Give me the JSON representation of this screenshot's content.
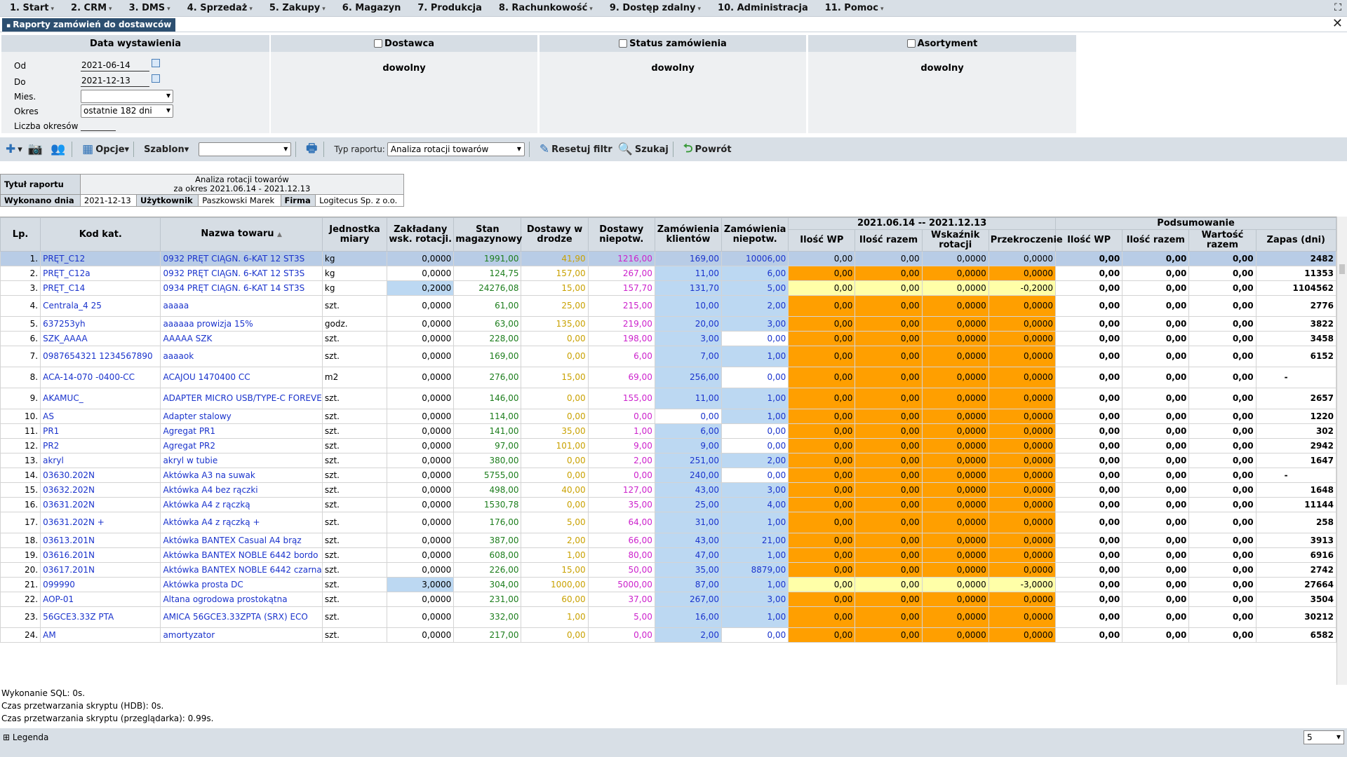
{
  "menu": [
    "1. Start",
    "2. CRM",
    "3. DMS",
    "4. Sprzedaż",
    "5. Zakupy",
    "6. Magazyn",
    "7. Produkcja",
    "8. Rachunkowość",
    "9. Dostęp zdalny",
    "10. Administracja",
    "11. Pomoc"
  ],
  "tab_title": "Raporty zamówień do dostawców",
  "filters": {
    "date_header": "Data wystawienia",
    "od_label": "Od",
    "od_value": "2021-06-14",
    "do_label": "Do",
    "do_value": "2021-12-13",
    "mies_label": "Mies.",
    "mies_value": "",
    "okres_label": "Okres",
    "okres_value": "ostatnie 182 dni",
    "liczba_label": "Liczba okresów",
    "dostawca_header": "Dostawca",
    "status_header": "Status zamówienia",
    "asort_header": "Asortyment",
    "any": "dowolny"
  },
  "toolbar": {
    "opcje": "Opcje",
    "szablon": "Szablon",
    "szablon_value": "",
    "typ_label": "Typ raportu:",
    "typ_value": "Analiza rotacji towarów",
    "reset": "Resetuj filtr",
    "search": "Szukaj",
    "back": "Powrót"
  },
  "info": {
    "title_label": "Tytuł raportu",
    "title_line1": "Analiza rotacji towarów",
    "title_line2": "za okres 2021.06.14 - 2021.12.13",
    "done_label": "Wykonano dnia",
    "done_value": "2021-12-13",
    "user_label": "Użytkownik",
    "user_value": "Paszkowski Marek",
    "firm_label": "Firma",
    "firm_value": "Logitecus Sp. z o.o."
  },
  "columns": {
    "lp": "Lp.",
    "kod": "Kod kat.",
    "nazwa": "Nazwa towaru",
    "jm": "Jednostka miary",
    "zakl": "Zakładany wsk. rotacji.",
    "stan": "Stan magazynowy",
    "drodze": "Dostawy w drodze",
    "niep": "Dostawy niepotw.",
    "zkl": "Zamówienia klientów",
    "zniep": "Zamówienia niepotw.",
    "period": "2021.06.14 -- 2021.12.13",
    "iwp": "Ilość WP",
    "iraz": "Ilość razem",
    "wsk": "Wskaźnik rotacji",
    "przek": "Przekroczenie",
    "summary": "Podsumowanie",
    "s_iwp": "Ilość WP",
    "s_iraz": "Ilość razem",
    "s_wart": "Wartość razem",
    "zapas": "Zapas (dni)"
  },
  "rows": [
    {
      "lp": "1.",
      "kod": "PRĘT_C12",
      "nazwa": "0932 PRĘT CIĄGN. 6-KAT 12 ST3S",
      "jm": "kg",
      "zakl": "0,0000",
      "stan": "1991,00",
      "drodze": "41,90",
      "niep": "1216,00",
      "zkl": "169,00",
      "zniep": "10006,00",
      "iwp": "0,00",
      "iraz": "0,00",
      "wsk": "0,0000",
      "przek": "0,0000",
      "siwp": "0,00",
      "siraz": "0,00",
      "swart": "0,00",
      "zapas": "2482"
    },
    {
      "lp": "2.",
      "kod": "PRĘT_C12a",
      "nazwa": "0932 PRĘT CIĄGN. 6-KAT 12 ST3S",
      "jm": "kg",
      "zakl": "0,0000",
      "stan": "124,75",
      "drodze": "157,00",
      "niep": "267,00",
      "zkl": "11,00",
      "zniep": "6,00",
      "iwp": "0,00",
      "iraz": "0,00",
      "wsk": "0,0000",
      "przek": "0,0000",
      "siwp": "0,00",
      "siraz": "0,00",
      "swart": "0,00",
      "zapas": "11353"
    },
    {
      "lp": "3.",
      "kod": "PRĘT_C14",
      "nazwa": "0934 PRĘT CIĄGN. 6-KAT 14 ST3S",
      "jm": "kg",
      "zakl": "0,2000",
      "stan": "24276,08",
      "drodze": "15,00",
      "niep": "157,70",
      "zkl": "131,70",
      "zniep": "5,00",
      "iwp": "0,00",
      "iraz": "0,00",
      "wsk": "0,0000",
      "przek": "-0,2000",
      "siwp": "0,00",
      "siraz": "0,00",
      "swart": "0,00",
      "zapas": "1104562"
    },
    {
      "lp": "4.",
      "kod": "Centrala_4 25",
      "nazwa": "aaaaa",
      "jm": "szt.",
      "zakl": "0,0000",
      "stan": "61,00",
      "drodze": "25,00",
      "niep": "215,00",
      "zkl": "10,00",
      "zniep": "2,00",
      "iwp": "0,00",
      "iraz": "0,00",
      "wsk": "0,0000",
      "przek": "0,0000",
      "siwp": "0,00",
      "siraz": "0,00",
      "swart": "0,00",
      "zapas": "2776"
    },
    {
      "lp": "5.",
      "kod": "637253yh",
      "nazwa": "aaaaaa prowizja 15%",
      "jm": "godz.",
      "zakl": "0,0000",
      "stan": "63,00",
      "drodze": "135,00",
      "niep": "219,00",
      "zkl": "20,00",
      "zniep": "3,00",
      "iwp": "0,00",
      "iraz": "0,00",
      "wsk": "0,0000",
      "przek": "0,0000",
      "siwp": "0,00",
      "siraz": "0,00",
      "swart": "0,00",
      "zapas": "3822"
    },
    {
      "lp": "6.",
      "kod": "SZK_AAAA",
      "nazwa": "AAAAA SZK",
      "jm": "szt.",
      "zakl": "0,0000",
      "stan": "228,00",
      "drodze": "0,00",
      "niep": "198,00",
      "zkl": "3,00",
      "zniep": "0,00",
      "iwp": "0,00",
      "iraz": "0,00",
      "wsk": "0,0000",
      "przek": "0,0000",
      "siwp": "0,00",
      "siraz": "0,00",
      "swart": "0,00",
      "zapas": "3458"
    },
    {
      "lp": "7.",
      "kod": "0987654321 1234567890",
      "nazwa": "aaaaok",
      "jm": "szt.",
      "zakl": "0,0000",
      "stan": "169,00",
      "drodze": "0,00",
      "niep": "6,00",
      "zkl": "7,00",
      "zniep": "1,00",
      "iwp": "0,00",
      "iraz": "0,00",
      "wsk": "0,0000",
      "przek": "0,0000",
      "siwp": "0,00",
      "siraz": "0,00",
      "swart": "0,00",
      "zapas": "6152"
    },
    {
      "lp": "8.",
      "kod": "ACA-14-070 -0400-CC",
      "nazwa": "ACAJOU 1470400 CC",
      "jm": "m2",
      "zakl": "0,0000",
      "stan": "276,00",
      "drodze": "15,00",
      "niep": "69,00",
      "zkl": "256,00",
      "zniep": "0,00",
      "iwp": "0,00",
      "iraz": "0,00",
      "wsk": "0,0000",
      "przek": "0,0000",
      "siwp": "0,00",
      "siraz": "0,00",
      "swart": "0,00",
      "zapas": "-"
    },
    {
      "lp": "9.",
      "kod": "AKAMUC_",
      "nazwa": "ADAPTER MICRO USB/TYPE-C FOREVER",
      "jm": "szt.",
      "zakl": "0,0000",
      "stan": "146,00",
      "drodze": "0,00",
      "niep": "155,00",
      "zkl": "11,00",
      "zniep": "1,00",
      "iwp": "0,00",
      "iraz": "0,00",
      "wsk": "0,0000",
      "przek": "0,0000",
      "siwp": "0,00",
      "siraz": "0,00",
      "swart": "0,00",
      "zapas": "2657"
    },
    {
      "lp": "10.",
      "kod": "AS",
      "nazwa": "Adapter stalowy",
      "jm": "szt.",
      "zakl": "0,0000",
      "stan": "114,00",
      "drodze": "0,00",
      "niep": "0,00",
      "zkl": "0,00",
      "zniep": "1,00",
      "iwp": "0,00",
      "iraz": "0,00",
      "wsk": "0,0000",
      "przek": "0,0000",
      "siwp": "0,00",
      "siraz": "0,00",
      "swart": "0,00",
      "zapas": "1220"
    },
    {
      "lp": "11.",
      "kod": "PR1",
      "nazwa": "Agregat PR1",
      "jm": "szt.",
      "zakl": "0,0000",
      "stan": "141,00",
      "drodze": "35,00",
      "niep": "1,00",
      "zkl": "6,00",
      "zniep": "0,00",
      "iwp": "0,00",
      "iraz": "0,00",
      "wsk": "0,0000",
      "przek": "0,0000",
      "siwp": "0,00",
      "siraz": "0,00",
      "swart": "0,00",
      "zapas": "302"
    },
    {
      "lp": "12.",
      "kod": "PR2",
      "nazwa": "Agregat PR2",
      "jm": "szt.",
      "zakl": "0,0000",
      "stan": "97,00",
      "drodze": "101,00",
      "niep": "9,00",
      "zkl": "9,00",
      "zniep": "0,00",
      "iwp": "0,00",
      "iraz": "0,00",
      "wsk": "0,0000",
      "przek": "0,0000",
      "siwp": "0,00",
      "siraz": "0,00",
      "swart": "0,00",
      "zapas": "2942"
    },
    {
      "lp": "13.",
      "kod": "akryl",
      "nazwa": "akryl w tubie",
      "jm": "szt.",
      "zakl": "0,0000",
      "stan": "380,00",
      "drodze": "0,00",
      "niep": "2,00",
      "zkl": "251,00",
      "zniep": "2,00",
      "iwp": "0,00",
      "iraz": "0,00",
      "wsk": "0,0000",
      "przek": "0,0000",
      "siwp": "0,00",
      "siraz": "0,00",
      "swart": "0,00",
      "zapas": "1647"
    },
    {
      "lp": "14.",
      "kod": "03630.202N",
      "nazwa": "Aktówka A3 na suwak",
      "jm": "szt.",
      "zakl": "0,0000",
      "stan": "5755,00",
      "drodze": "0,00",
      "niep": "0,00",
      "zkl": "240,00",
      "zniep": "0,00",
      "iwp": "0,00",
      "iraz": "0,00",
      "wsk": "0,0000",
      "przek": "0,0000",
      "siwp": "0,00",
      "siraz": "0,00",
      "swart": "0,00",
      "zapas": "-"
    },
    {
      "lp": "15.",
      "kod": "03632.202N",
      "nazwa": "Aktówka A4 bez rączki",
      "jm": "szt.",
      "zakl": "0,0000",
      "stan": "498,00",
      "drodze": "40,00",
      "niep": "127,00",
      "zkl": "43,00",
      "zniep": "3,00",
      "iwp": "0,00",
      "iraz": "0,00",
      "wsk": "0,0000",
      "przek": "0,0000",
      "siwp": "0,00",
      "siraz": "0,00",
      "swart": "0,00",
      "zapas": "1648"
    },
    {
      "lp": "16.",
      "kod": "03631.202N",
      "nazwa": "Aktówka A4 z rączką",
      "jm": "szt.",
      "zakl": "0,0000",
      "stan": "1530,78",
      "drodze": "0,00",
      "niep": "35,00",
      "zkl": "25,00",
      "zniep": "4,00",
      "iwp": "0,00",
      "iraz": "0,00",
      "wsk": "0,0000",
      "przek": "0,0000",
      "siwp": "0,00",
      "siraz": "0,00",
      "swart": "0,00",
      "zapas": "11144"
    },
    {
      "lp": "17.",
      "kod": "03631.202N +",
      "nazwa": "Aktówka A4 z rączką +",
      "jm": "szt.",
      "zakl": "0,0000",
      "stan": "176,00",
      "drodze": "5,00",
      "niep": "64,00",
      "zkl": "31,00",
      "zniep": "1,00",
      "iwp": "0,00",
      "iraz": "0,00",
      "wsk": "0,0000",
      "przek": "0,0000",
      "siwp": "0,00",
      "siraz": "0,00",
      "swart": "0,00",
      "zapas": "258"
    },
    {
      "lp": "18.",
      "kod": "03613.201N",
      "nazwa": "Aktówka BANTEX Casual A4 brąz",
      "jm": "szt.",
      "zakl": "0,0000",
      "stan": "387,00",
      "drodze": "2,00",
      "niep": "66,00",
      "zkl": "43,00",
      "zniep": "21,00",
      "iwp": "0,00",
      "iraz": "0,00",
      "wsk": "0,0000",
      "przek": "0,0000",
      "siwp": "0,00",
      "siraz": "0,00",
      "swart": "0,00",
      "zapas": "3913"
    },
    {
      "lp": "19.",
      "kod": "03616.201N",
      "nazwa": "Aktówka BANTEX NOBLE 6442 bordo",
      "jm": "szt.",
      "zakl": "0,0000",
      "stan": "608,00",
      "drodze": "1,00",
      "niep": "80,00",
      "zkl": "47,00",
      "zniep": "1,00",
      "iwp": "0,00",
      "iraz": "0,00",
      "wsk": "0,0000",
      "przek": "0,0000",
      "siwp": "0,00",
      "siraz": "0,00",
      "swart": "0,00",
      "zapas": "6916"
    },
    {
      "lp": "20.",
      "kod": "03617.201N",
      "nazwa": "Aktówka BANTEX NOBLE 6442 czarna",
      "jm": "szt.",
      "zakl": "0,0000",
      "stan": "226,00",
      "drodze": "15,00",
      "niep": "50,00",
      "zkl": "35,00",
      "zniep": "8879,00",
      "iwp": "0,00",
      "iraz": "0,00",
      "wsk": "0,0000",
      "przek": "0,0000",
      "siwp": "0,00",
      "siraz": "0,00",
      "swart": "0,00",
      "zapas": "2742"
    },
    {
      "lp": "21.",
      "kod": "099990",
      "nazwa": "Aktówka prosta DC",
      "jm": "szt.",
      "zakl": "3,0000",
      "stan": "304,00",
      "drodze": "1000,00",
      "niep": "5000,00",
      "zkl": "87,00",
      "zniep": "1,00",
      "iwp": "0,00",
      "iraz": "0,00",
      "wsk": "0,0000",
      "przek": "-3,0000",
      "siwp": "0,00",
      "siraz": "0,00",
      "swart": "0,00",
      "zapas": "27664"
    },
    {
      "lp": "22.",
      "kod": "AOP-01",
      "nazwa": "Altana ogrodowa prostokątna",
      "jm": "szt.",
      "zakl": "0,0000",
      "stan": "231,00",
      "drodze": "60,00",
      "niep": "37,00",
      "zkl": "267,00",
      "zniep": "3,00",
      "iwp": "0,00",
      "iraz": "0,00",
      "wsk": "0,0000",
      "przek": "0,0000",
      "siwp": "0,00",
      "siraz": "0,00",
      "swart": "0,00",
      "zapas": "3504"
    },
    {
      "lp": "23.",
      "kod": "56GCE3.33Z PTA",
      "nazwa": "AMICA 56GCE3.33ZPTA (SRX) ECO",
      "jm": "szt.",
      "zakl": "0,0000",
      "stan": "332,00",
      "drodze": "1,00",
      "niep": "5,00",
      "zkl": "16,00",
      "zniep": "1,00",
      "iwp": "0,00",
      "iraz": "0,00",
      "wsk": "0,0000",
      "przek": "0,0000",
      "siwp": "0,00",
      "siraz": "0,00",
      "swart": "0,00",
      "zapas": "30212"
    },
    {
      "lp": "24.",
      "kod": "AM",
      "nazwa": "amortyzator",
      "jm": "szt.",
      "zakl": "0,0000",
      "stan": "217,00",
      "drodze": "0,00",
      "niep": "0,00",
      "zkl": "2,00",
      "zniep": "0,00",
      "iwp": "0,00",
      "iraz": "0,00",
      "wsk": "0,0000",
      "przek": "0,0000",
      "siwp": "0,00",
      "siraz": "0,00",
      "swart": "0,00",
      "zapas": "6582"
    }
  ],
  "status": [
    "Wykonanie SQL: 0s.",
    "Czas przetwarzania skryptu (HDB): 0s.",
    "Czas przetwarzania skryptu (przeglądarka): 0.99s."
  ],
  "footer": {
    "legend": "Legenda",
    "page_size": "5"
  },
  "colors": {
    "header_bg": "#d6dde4",
    "orange": "#ff9f00",
    "yellow": "#ffffa8",
    "blue_cell": "#bcd8f2",
    "link": "#1a33cc",
    "stock_green": "#1c7d1c",
    "transit_gold": "#c9a100",
    "unconfirmed_magenta": "#cc22cc",
    "tab_bg": "#2d4f70"
  }
}
